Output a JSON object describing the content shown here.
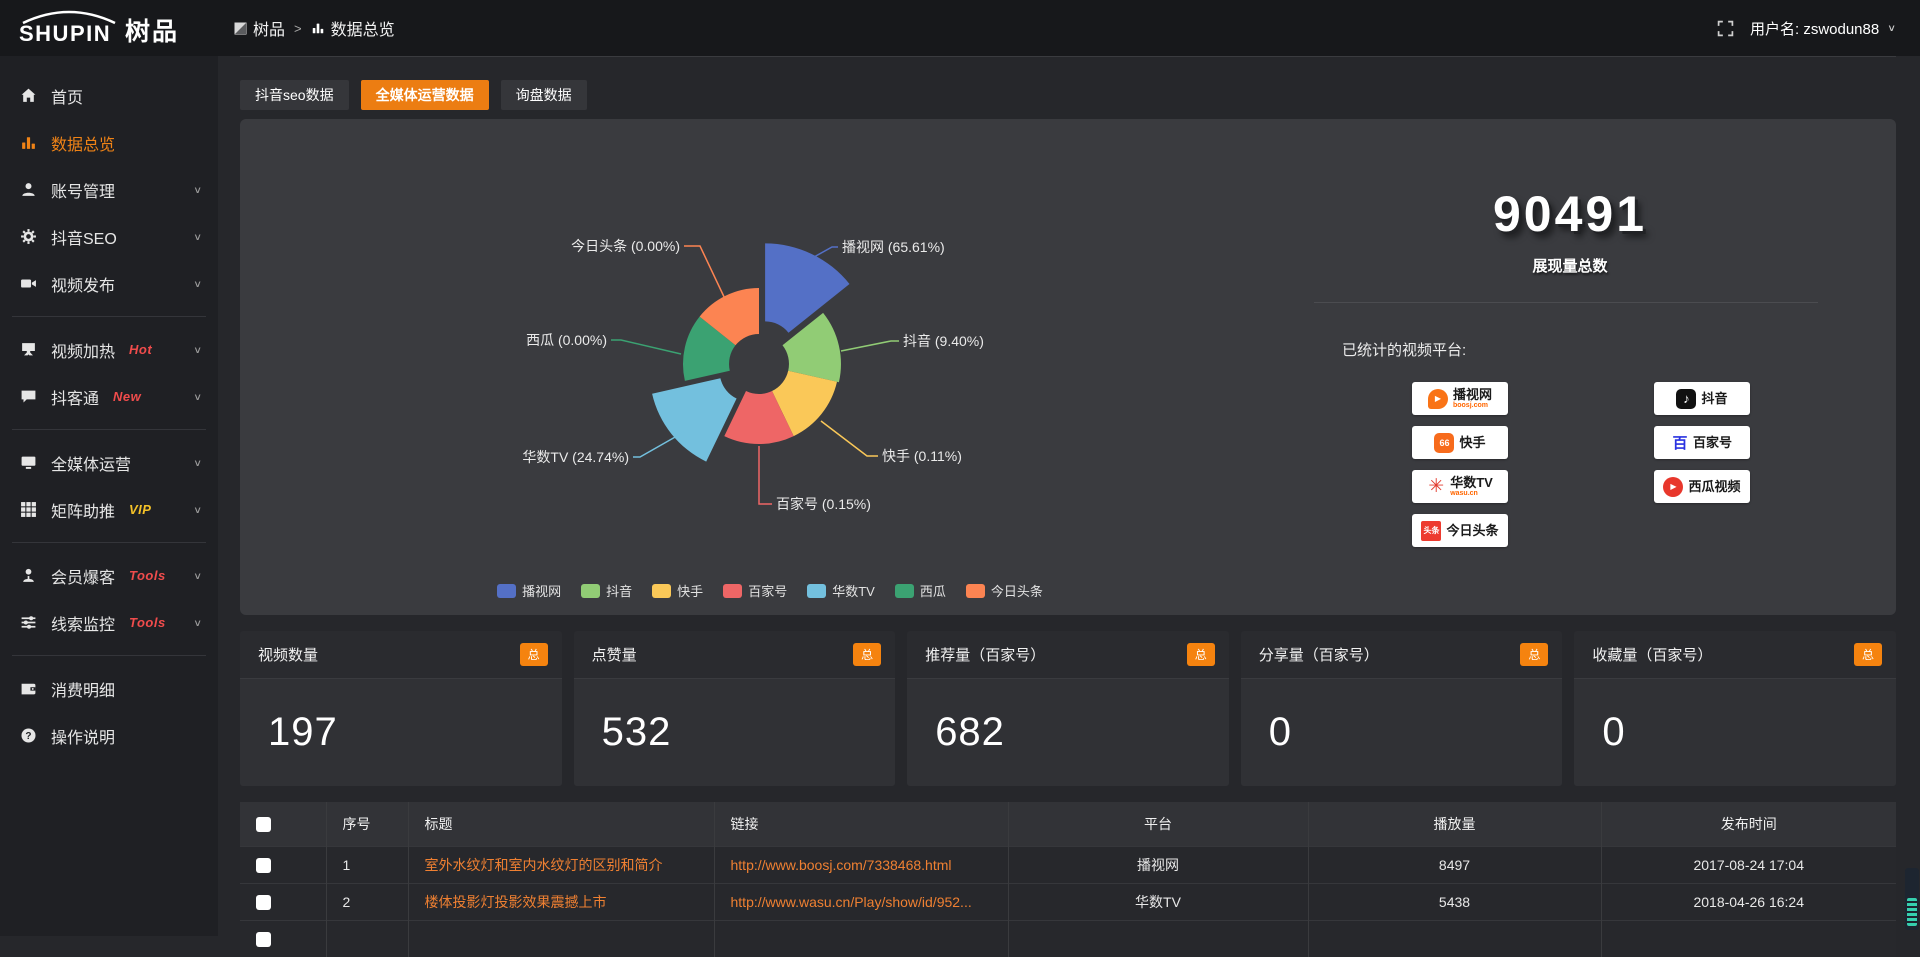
{
  "header": {
    "logo_en": "SHUPIN",
    "logo_cn": "树品",
    "breadcrumb": [
      "树品",
      "数据总览"
    ],
    "breadcrumb_sep": ">",
    "user_label": "用户名:",
    "username": "zswodun88"
  },
  "sidebar": {
    "items": [
      {
        "icon": "home",
        "label": "首页"
      },
      {
        "icon": "chart",
        "label": "数据总览",
        "active": true
      },
      {
        "icon": "user",
        "label": "账号管理",
        "chevron": true
      },
      {
        "icon": "gear",
        "label": "抖音SEO",
        "chevron": true
      },
      {
        "icon": "video",
        "label": "视频发布",
        "chevron": true
      },
      {
        "type": "divider"
      },
      {
        "icon": "heat",
        "label": "视频加热",
        "badge": "Hot",
        "badge_color": "#f04c4c",
        "chevron": true
      },
      {
        "icon": "chat",
        "label": "抖客通",
        "badge": "New",
        "badge_color": "#f04c4c",
        "chevron": true
      },
      {
        "type": "divider"
      },
      {
        "icon": "monitor",
        "label": "全媒体运营",
        "chevron": true
      },
      {
        "icon": "grid",
        "label": "矩阵助推",
        "badge": "VIP",
        "badge_color": "#f3c128",
        "chevron": true
      },
      {
        "type": "divider"
      },
      {
        "icon": "person",
        "label": "会员爆客",
        "badge": "Tools",
        "badge_color": "#f04c4c",
        "chevron": true
      },
      {
        "icon": "sliders",
        "label": "线索监控",
        "badge": "Tools",
        "badge_color": "#f04c4c",
        "chevron": true
      },
      {
        "type": "divider"
      },
      {
        "icon": "wallet",
        "label": "消费明细"
      },
      {
        "icon": "question",
        "label": "操作说明"
      }
    ]
  },
  "tabs": [
    {
      "label": "抖音seo数据",
      "active": false
    },
    {
      "label": "全媒体运营数据",
      "active": true
    },
    {
      "label": "询盘数据",
      "active": false
    }
  ],
  "chart_data": {
    "type": "pie",
    "variant": "nightingale-rose",
    "legend_position": "bottom",
    "slices": [
      {
        "name": "播视网",
        "pct": "65.61%",
        "value": 65.61,
        "color": "#5470C6",
        "radius": 108,
        "offset": 14
      },
      {
        "name": "抖音",
        "pct": "9.40%",
        "value": 9.4,
        "color": "#91CC75",
        "radius": 82,
        "offset": 0
      },
      {
        "name": "快手",
        "pct": "0.11%",
        "value": 0.11,
        "color": "#FAC858",
        "radius": 80,
        "offset": 0
      },
      {
        "name": "百家号",
        "pct": "0.15%",
        "value": 0.15,
        "color": "#EE6666",
        "radius": 80,
        "offset": 0
      },
      {
        "name": "华数TV",
        "pct": "24.74%",
        "value": 24.74,
        "color": "#73C0DE",
        "radius": 100,
        "offset": 12
      },
      {
        "name": "西瓜",
        "pct": "0.00%",
        "value": 0.0,
        "color": "#3BA272",
        "radius": 76,
        "offset": 0
      },
      {
        "name": "今日头条",
        "pct": "0.00%",
        "value": 0.0,
        "color": "#FC8452",
        "radius": 76,
        "offset": 0
      }
    ]
  },
  "summary": {
    "total": "90491",
    "total_label": "展现量总数",
    "platforms_label": "已统计的视频平台:",
    "platforms": [
      {
        "icon": "boosj",
        "glyph": "▶",
        "name": "播视网",
        "sub": "boosj.com"
      },
      {
        "icon": "kuaishou",
        "glyph": "66",
        "name": "快手"
      },
      {
        "icon": "wasu",
        "glyph": "✳",
        "name": "华数TV",
        "sub": "wasu.cn"
      },
      {
        "icon": "toutiao",
        "glyph": "头条",
        "name": "今日头条"
      },
      {
        "icon": "douyin",
        "glyph": "♪",
        "name": "抖音"
      },
      {
        "icon": "baijiahao",
        "glyph": "百",
        "name": "百家号"
      },
      {
        "icon": "xigua",
        "glyph": "▶",
        "name": "西瓜视频"
      }
    ]
  },
  "stat_cards": [
    {
      "label": "视频数量",
      "badge": "总",
      "value": "197"
    },
    {
      "label": "点赞量",
      "badge": "总",
      "value": "532"
    },
    {
      "label": "推荐量（百家号）",
      "badge": "总",
      "value": "682"
    },
    {
      "label": "分享量（百家号）",
      "badge": "总",
      "value": "0"
    },
    {
      "label": "收藏量（百家号）",
      "badge": "总",
      "value": "0"
    }
  ],
  "table": {
    "headers": [
      "",
      "序号",
      "标题",
      "链接",
      "平台",
      "播放量",
      "发布时间"
    ],
    "rows": [
      {
        "num": "1",
        "title": "室外水纹灯和室内水纹灯的区别和简介",
        "link": "http://www.boosj.com/7338468.html",
        "platform": "播视网",
        "plays": "8497",
        "time": "2017-08-24 17:04"
      },
      {
        "num": "2",
        "title": "楼体投影灯投影效果震撼上市",
        "link": "http://www.wasu.cn/Play/show/id/952...",
        "platform": "华数TV",
        "plays": "5438",
        "time": "2018-04-26 16:24"
      },
      {
        "num": "",
        "title": "",
        "link": "",
        "platform": "",
        "plays": "",
        "time": ""
      }
    ]
  },
  "colors": {
    "accent_orange": "#ec7d12",
    "badge_orange": "#f5830f",
    "link_orange": "#ef8032",
    "hot_red": "#f04c4c",
    "vip_gold": "#f3c128",
    "panel_bg": "#3a3b3f",
    "sidebar_bg": "#1f2024",
    "header_bg": "#17181b"
  }
}
